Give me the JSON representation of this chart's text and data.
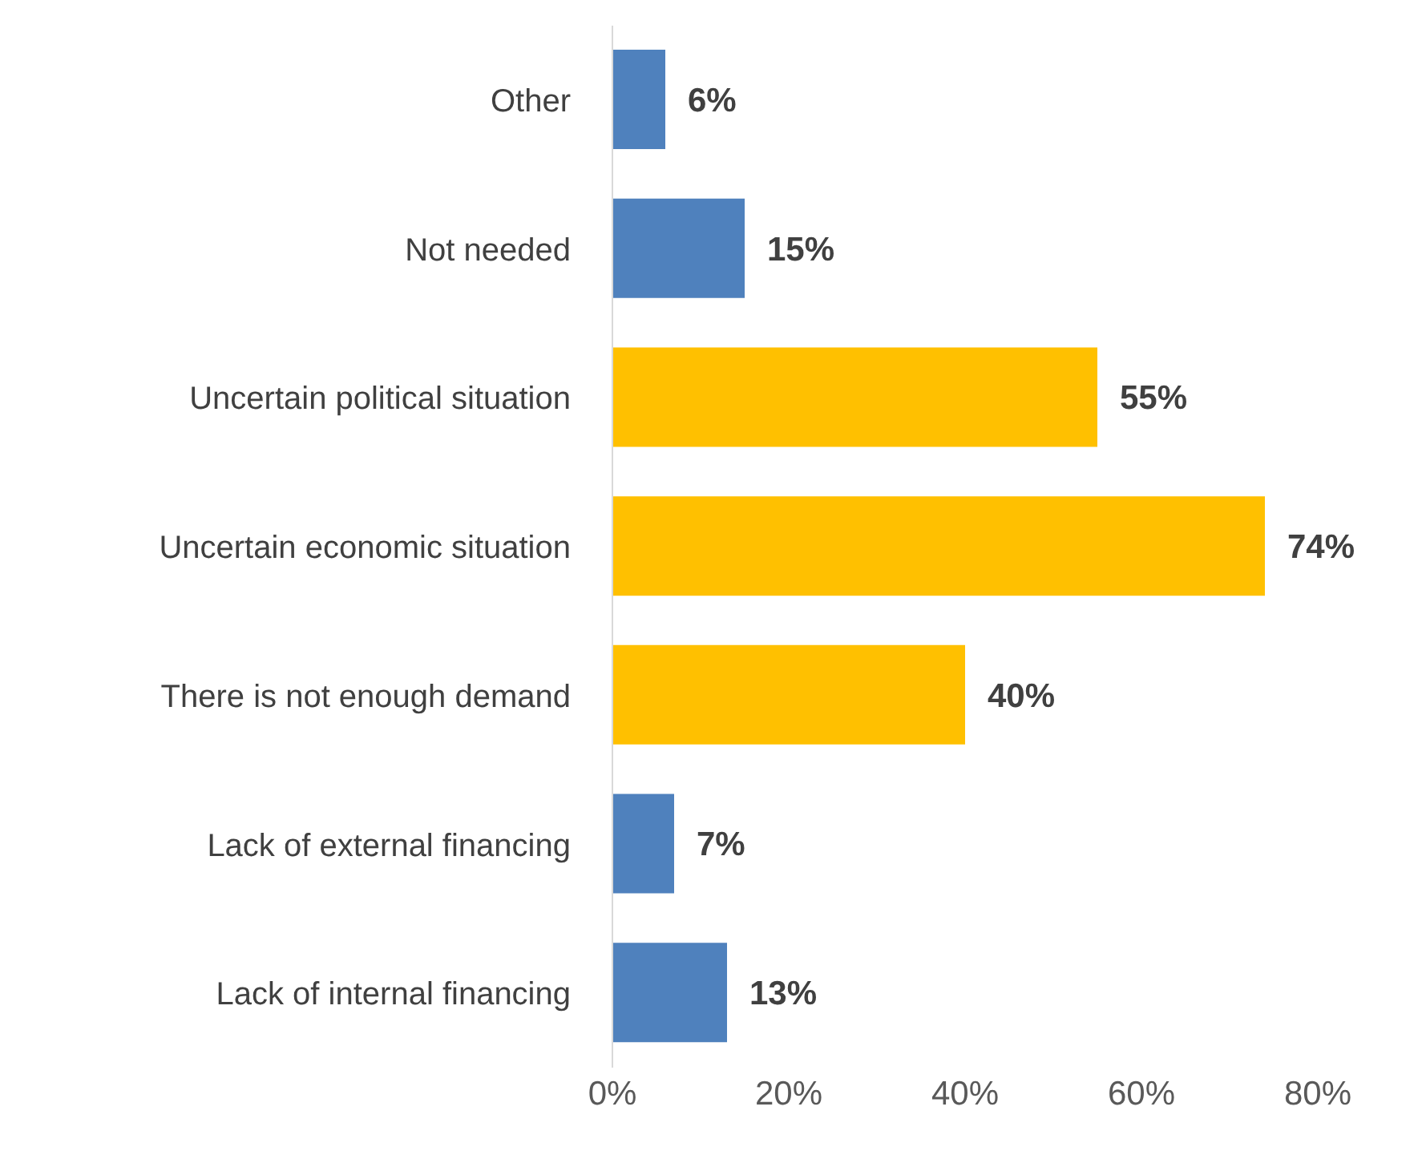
{
  "chart_data": {
    "type": "bar",
    "orientation": "horizontal",
    "categories": [
      "Other",
      "Not needed",
      "Uncertain political situation",
      "Uncertain economic situation",
      "There is not enough demand",
      "Lack of external financing",
      "Lack of internal financing"
    ],
    "values": [
      6,
      15,
      55,
      74,
      40,
      7,
      13
    ],
    "colors": [
      "#4f81bd",
      "#4f81bd",
      "#ffc000",
      "#ffc000",
      "#ffc000",
      "#4f81bd",
      "#4f81bd"
    ],
    "value_labels": [
      "6%",
      "15%",
      "55%",
      "74%",
      "40%",
      "7%",
      "13%"
    ],
    "xlim": [
      0,
      80
    ],
    "xticks": [
      {
        "value": 0,
        "label": "0%"
      },
      {
        "value": 20,
        "label": "20%"
      },
      {
        "value": 40,
        "label": "40%"
      },
      {
        "value": 60,
        "label": "60%"
      },
      {
        "value": 80,
        "label": "80%"
      }
    ],
    "grid": false
  }
}
